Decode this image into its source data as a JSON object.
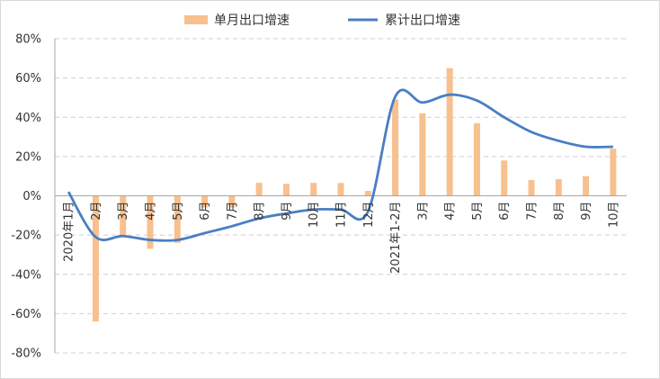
{
  "chart_data": {
    "type": "bar+line",
    "categories": [
      "2020年1月",
      "2月",
      "3月",
      "4月",
      "5月",
      "6月",
      "7月",
      "8月",
      "9月",
      "10月",
      "11月",
      "12月",
      "2021年1-2月",
      "3月",
      "4月",
      "5月",
      "6月",
      "7月",
      "8月",
      "9月",
      "10月"
    ],
    "series": [
      {
        "name": "单月出口增速",
        "kind": "bar",
        "color": "#F8C08E",
        "values": [
          null,
          -64,
          -21,
          -27,
          -24,
          -6,
          -6,
          6.6,
          6.1,
          6.6,
          6.5,
          2.5,
          49,
          42,
          65,
          37,
          18,
          8,
          8.5,
          10,
          24
        ]
      },
      {
        "name": "累计出口增速",
        "kind": "line",
        "color": "#4A7EC3",
        "values": [
          2,
          -21,
          -20.5,
          -22.5,
          -22.5,
          -19,
          -15.5,
          -11.5,
          -9,
          -7,
          -7,
          -8,
          50.5,
          47.5,
          51.5,
          48.5,
          40,
          32.5,
          28,
          25,
          25
        ]
      }
    ],
    "y_ticks": [
      "80%",
      "60%",
      "40%",
      "20%",
      "0%",
      "-20%",
      "-40%",
      "-60%",
      "-80%"
    ],
    "ylim": [
      -80,
      80
    ],
    "ytick_step": 20,
    "grid": "horizontal dashed",
    "legend_position": "top-center"
  }
}
